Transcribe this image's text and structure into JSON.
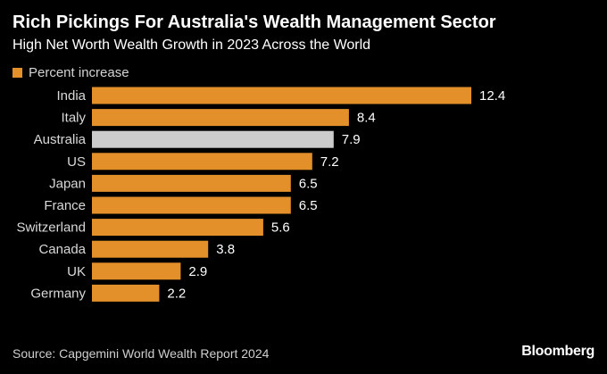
{
  "chart_data": {
    "type": "bar",
    "orientation": "horizontal",
    "title": "Rich Pickings For Australia's Wealth Management Sector",
    "subtitle": "High Net Worth Wealth Growth in 2023 Across the World",
    "legend": [
      "Percent increase"
    ],
    "categories": [
      "India",
      "Italy",
      "Australia",
      "US",
      "Japan",
      "France",
      "Switzerland",
      "Canada",
      "UK",
      "Germany"
    ],
    "values": [
      12.4,
      8.4,
      7.9,
      7.2,
      6.5,
      6.5,
      5.6,
      3.8,
      2.9,
      2.2
    ],
    "value_labels": [
      "12.4",
      "8.4",
      "7.9",
      "7.2",
      "6.5",
      "6.5",
      "5.6",
      "3.8",
      "2.9",
      "2.2"
    ],
    "highlight": "Australia",
    "xlim": [
      0,
      12.4
    ],
    "xlabel": "",
    "ylabel": "",
    "grid": false
  },
  "colors": {
    "bar": "#e38f2a",
    "highlight": "#cccccc",
    "background": "#000000"
  },
  "source": "Source: Capgemini World Wealth Report 2024",
  "brand": "Bloomberg"
}
